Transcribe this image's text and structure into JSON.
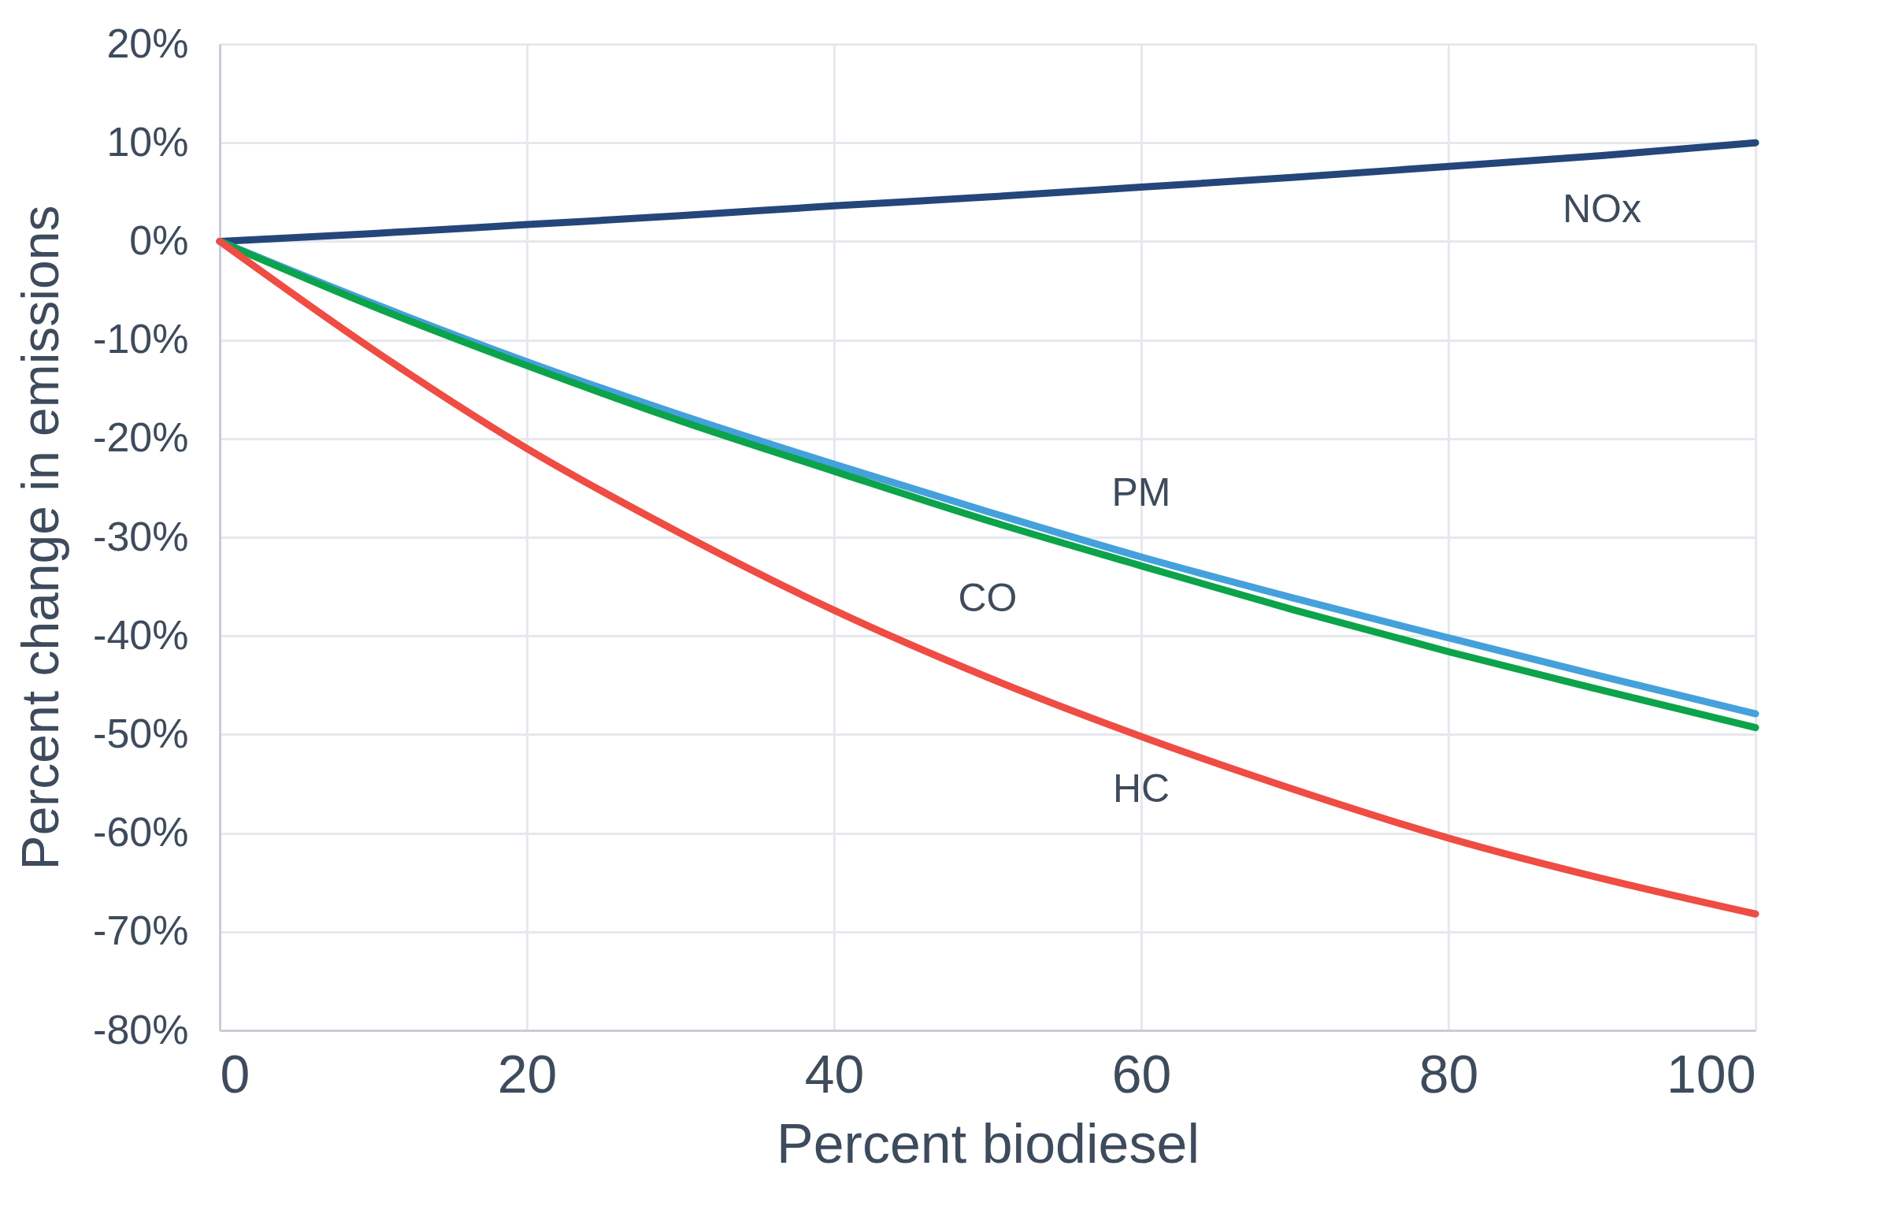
{
  "chart_data": {
    "type": "line",
    "xlabel": "Percent biodiesel",
    "ylabel": "Percent change in emissions",
    "x": [
      0,
      10,
      20,
      30,
      40,
      50,
      60,
      70,
      80,
      90,
      100
    ],
    "series": [
      {
        "name": "NOx",
        "color": "#24467a",
        "values": [
          0,
          0.8,
          1.7,
          2.6,
          3.6,
          4.5,
          5.5,
          6.5,
          7.6,
          8.7,
          10
        ]
      },
      {
        "name": "PM",
        "color": "#45a1dc",
        "values": [
          0,
          -6.3,
          -12.2,
          -17.6,
          -22.6,
          -27.4,
          -32,
          -36.2,
          -40.2,
          -44.1,
          -47.9
        ]
      },
      {
        "name": "CO",
        "color": "#0ca34a",
        "values": [
          0,
          -6.6,
          -12.6,
          -18.2,
          -23.3,
          -28.3,
          -32.9,
          -37.4,
          -41.6,
          -45.5,
          -49.3
        ]
      },
      {
        "name": "HC",
        "color": "#ef4c43",
        "values": [
          0,
          -11,
          -21,
          -29.6,
          -37.4,
          -44.2,
          -50.2,
          -55.6,
          -60.5,
          -64.6,
          -68.2
        ]
      }
    ],
    "xlim": [
      0,
      100
    ],
    "xticks": [
      0,
      20,
      40,
      60,
      80,
      100
    ],
    "ylim": [
      -80,
      20
    ],
    "yticks": [
      {
        "value": -80,
        "label": "-80%"
      },
      {
        "value": -70,
        "label": "-70%"
      },
      {
        "value": -60,
        "label": "-60%"
      },
      {
        "value": -50,
        "label": "-50%"
      },
      {
        "value": -40,
        "label": "-40%"
      },
      {
        "value": -30,
        "label": "-30%"
      },
      {
        "value": -20,
        "label": "-20%"
      },
      {
        "value": -10,
        "label": "-10%"
      },
      {
        "value": 0,
        "label": "0%"
      },
      {
        "value": 10,
        "label": "10%"
      },
      {
        "value": 20,
        "label": "20%"
      }
    ],
    "grid": true,
    "legend": false,
    "marker": "none",
    "line_style": "solid"
  }
}
